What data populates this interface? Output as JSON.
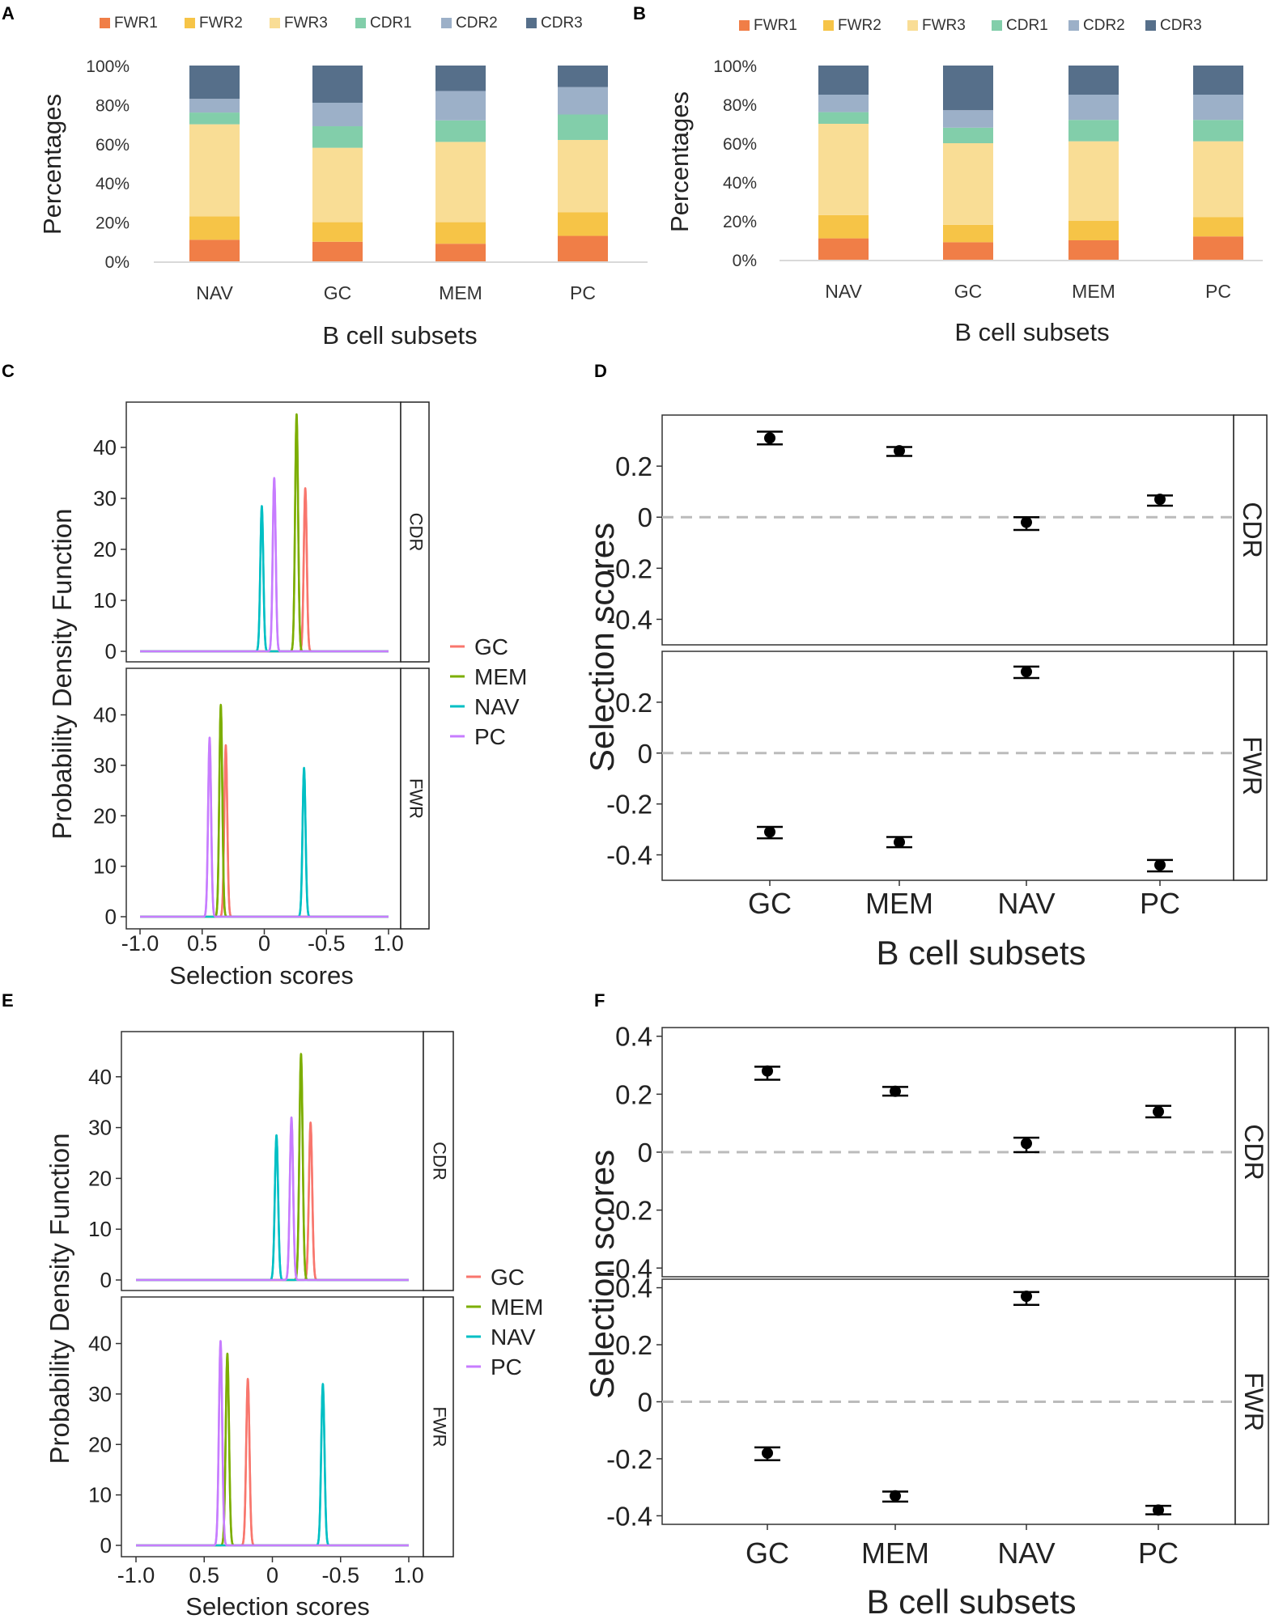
{
  "colors": {
    "FWR1": "#f07e47",
    "FWR2": "#f6c447",
    "FWR3": "#f9dd95",
    "CDR1": "#82ceaa",
    "CDR2": "#9cb0c8",
    "CDR3": "#566f8a",
    "GC": "#f8766d",
    "MEM": "#7cae00",
    "NAV": "#00bfc4",
    "PC": "#c77cff",
    "hline": "#bbbbbb"
  },
  "chart_data": [
    {
      "panel": "A",
      "type": "bar",
      "stacked": true,
      "ylabel": "Percentages",
      "xlabel": "B cell subsets",
      "y_ticks": [
        "0%",
        "20%",
        "40%",
        "60%",
        "80%",
        "100%"
      ],
      "ylim": [
        0,
        100
      ],
      "legend": [
        "FWR1",
        "FWR2",
        "FWR3",
        "CDR1",
        "CDR2",
        "CDR3"
      ],
      "categories": [
        "NAV",
        "GC",
        "MEM",
        "PC"
      ],
      "series": [
        {
          "name": "FWR1",
          "values": [
            11,
            10,
            9,
            13
          ]
        },
        {
          "name": "FWR2",
          "values": [
            12,
            10,
            11,
            12
          ]
        },
        {
          "name": "FWR3",
          "values": [
            47,
            38,
            41,
            37
          ]
        },
        {
          "name": "CDR1",
          "values": [
            6,
            11,
            11,
            13
          ]
        },
        {
          "name": "CDR2",
          "values": [
            7,
            12,
            15,
            14
          ]
        },
        {
          "name": "CDR3",
          "values": [
            17,
            19,
            13,
            11
          ]
        }
      ]
    },
    {
      "panel": "B",
      "type": "bar",
      "stacked": true,
      "ylabel": "Percentages",
      "xlabel": "B cell subsets",
      "y_ticks": [
        "0%",
        "20%",
        "40%",
        "60%",
        "80%",
        "100%"
      ],
      "ylim": [
        0,
        100
      ],
      "legend": [
        "FWR1",
        "FWR2",
        "FWR3",
        "CDR1",
        "CDR2",
        "CDR3"
      ],
      "categories": [
        "NAV",
        "GC",
        "MEM",
        "PC"
      ],
      "series": [
        {
          "name": "FWR1",
          "values": [
            11,
            9,
            10,
            12
          ]
        },
        {
          "name": "FWR2",
          "values": [
            12,
            9,
            10,
            10
          ]
        },
        {
          "name": "FWR3",
          "values": [
            47,
            42,
            41,
            39
          ]
        },
        {
          "name": "CDR1",
          "values": [
            6,
            8,
            11,
            11
          ]
        },
        {
          "name": "CDR2",
          "values": [
            9,
            9,
            13,
            13
          ]
        },
        {
          "name": "CDR3",
          "values": [
            15,
            23,
            15,
            15
          ]
        }
      ]
    },
    {
      "panel": "C",
      "type": "line",
      "subtype": "density",
      "ylabel": "Probability Density Function",
      "xlabel": "Selection scores",
      "x_ticks": [
        "-1.0",
        "0.5",
        "0",
        "-0.5",
        "1.0"
      ],
      "y_ticks": [
        "0",
        "10",
        "20",
        "30",
        "40"
      ],
      "xlim": [
        -1,
        1
      ],
      "ylim": [
        0,
        46.5
      ],
      "legend": [
        "GC",
        "MEM",
        "NAV",
        "PC"
      ],
      "facets": [
        {
          "label": "CDR",
          "series": [
            {
              "name": "GC",
              "mean": 0.33,
              "peak": 32
            },
            {
              "name": "MEM",
              "mean": 0.26,
              "peak": 46.5
            },
            {
              "name": "NAV",
              "mean": -0.02,
              "peak": 28.5
            },
            {
              "name": "PC",
              "mean": 0.08,
              "peak": 34
            }
          ]
        },
        {
          "label": "FWR",
          "series": [
            {
              "name": "GC",
              "mean": -0.31,
              "peak": 34
            },
            {
              "name": "MEM",
              "mean": -0.35,
              "peak": 42
            },
            {
              "name": "NAV",
              "mean": 0.32,
              "peak": 29.5
            },
            {
              "name": "PC",
              "mean": -0.44,
              "peak": 35.5
            }
          ]
        }
      ]
    },
    {
      "panel": "D",
      "type": "scatter",
      "subtype": "errorbar",
      "ylabel": "Selection scores",
      "xlabel": "B cell subsets",
      "categories": [
        "GC",
        "MEM",
        "NAV",
        "PC"
      ],
      "y_ticks": [
        "0.2",
        "0",
        "-0.2",
        "-0.4"
      ],
      "ylim": [
        -0.5,
        0.4
      ],
      "facets": [
        {
          "label": "CDR",
          "points": [
            {
              "name": "GC",
              "value": 0.31,
              "lower": 0.285,
              "upper": 0.335
            },
            {
              "name": "MEM",
              "value": 0.26,
              "lower": 0.24,
              "upper": 0.275
            },
            {
              "name": "NAV",
              "value": -0.02,
              "lower": -0.05,
              "upper": 0.0
            },
            {
              "name": "PC",
              "value": 0.07,
              "lower": 0.045,
              "upper": 0.085
            }
          ]
        },
        {
          "label": "FWR",
          "points": [
            {
              "name": "GC",
              "value": -0.31,
              "lower": -0.335,
              "upper": -0.29
            },
            {
              "name": "MEM",
              "value": -0.35,
              "lower": -0.37,
              "upper": -0.33
            },
            {
              "name": "NAV",
              "value": 0.32,
              "lower": 0.295,
              "upper": 0.34
            },
            {
              "name": "PC",
              "value": -0.44,
              "lower": -0.465,
              "upper": -0.42
            }
          ]
        }
      ]
    },
    {
      "panel": "E",
      "type": "line",
      "subtype": "density",
      "ylabel": "Probability Density Function",
      "xlabel": "Selection scores",
      "x_ticks": [
        "-1.0",
        "0.5",
        "0",
        "-0.5",
        "1.0"
      ],
      "y_ticks": [
        "0",
        "10",
        "20",
        "30",
        "40"
      ],
      "xlim": [
        -1,
        1
      ],
      "ylim": [
        0,
        46.5
      ],
      "legend": [
        "GC",
        "MEM",
        "NAV",
        "PC"
      ],
      "facets": [
        {
          "label": "CDR",
          "series": [
            {
              "name": "GC",
              "mean": 0.28,
              "peak": 31
            },
            {
              "name": "MEM",
              "mean": 0.21,
              "peak": 44.5
            },
            {
              "name": "NAV",
              "mean": 0.03,
              "peak": 28.5
            },
            {
              "name": "PC",
              "mean": 0.14,
              "peak": 32
            }
          ]
        },
        {
          "label": "FWR",
          "series": [
            {
              "name": "GC",
              "mean": -0.18,
              "peak": 33
            },
            {
              "name": "MEM",
              "mean": -0.33,
              "peak": 38
            },
            {
              "name": "NAV",
              "mean": 0.37,
              "peak": 32
            },
            {
              "name": "PC",
              "mean": -0.38,
              "peak": 40.5
            }
          ]
        }
      ]
    },
    {
      "panel": "F",
      "type": "scatter",
      "subtype": "errorbar",
      "ylabel": "Selection scores",
      "xlabel": "B cell subsets",
      "categories": [
        "GC",
        "MEM",
        "NAV",
        "PC"
      ],
      "y_ticks": [
        "0.4",
        "0.2",
        "0",
        "-0.2",
        "-0.4"
      ],
      "ylim": [
        -0.43,
        0.43
      ],
      "facets": [
        {
          "label": "CDR",
          "points": [
            {
              "name": "GC",
              "value": 0.28,
              "lower": 0.25,
              "upper": 0.295
            },
            {
              "name": "MEM",
              "value": 0.21,
              "lower": 0.195,
              "upper": 0.225
            },
            {
              "name": "NAV",
              "value": 0.03,
              "lower": 0.0,
              "upper": 0.05
            },
            {
              "name": "PC",
              "value": 0.14,
              "lower": 0.12,
              "upper": 0.16
            }
          ]
        },
        {
          "label": "FWR",
          "points": [
            {
              "name": "GC",
              "value": -0.18,
              "lower": -0.205,
              "upper": -0.16
            },
            {
              "name": "MEM",
              "value": -0.33,
              "lower": -0.35,
              "upper": -0.315
            },
            {
              "name": "NAV",
              "value": 0.37,
              "lower": 0.34,
              "upper": 0.385
            },
            {
              "name": "PC",
              "value": -0.38,
              "lower": -0.395,
              "upper": -0.365
            }
          ]
        }
      ]
    }
  ]
}
